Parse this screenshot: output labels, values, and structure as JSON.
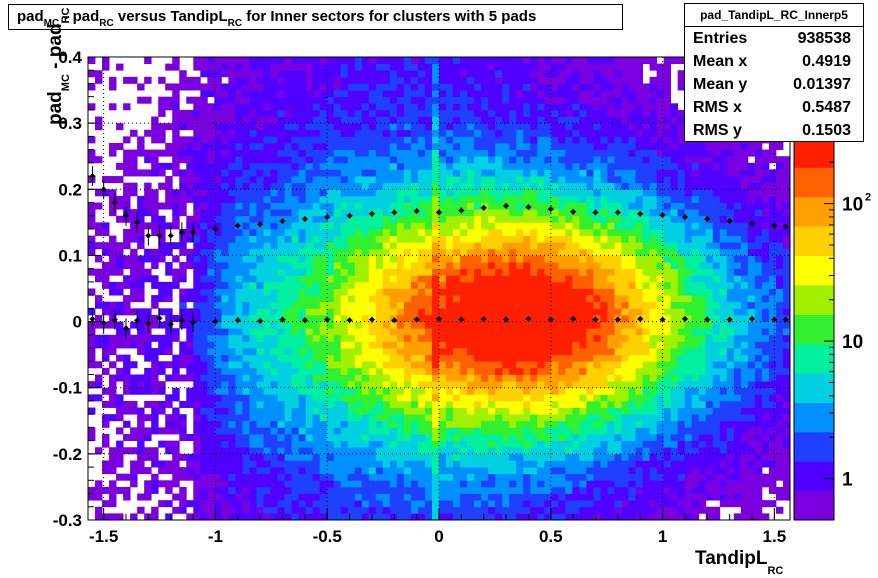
{
  "title": {
    "parts": [
      "pad",
      "MC",
      " - pad",
      "RC",
      " versus TandipL",
      "RC",
      " for Inner sectors for clusters with 5 pads"
    ]
  },
  "stats": {
    "name": "pad_TandipL_RC_Innerp5",
    "rows": [
      {
        "label": "Entries",
        "value": "938538"
      },
      {
        "label": "Mean x",
        "value": "0.4919"
      },
      {
        "label": "Mean y",
        "value": "0.01397"
      },
      {
        "label": "RMS x",
        "value": "0.5487"
      },
      {
        "label": "RMS y",
        "value": "0.1503"
      }
    ]
  },
  "chart_data": {
    "type": "heatmap",
    "xlabel": {
      "main": "TandipL",
      "sub": "RC"
    },
    "ylabel": {
      "parts": [
        "pad",
        "MC",
        " - pad",
        "RC"
      ]
    },
    "xlim": [
      -1.57,
      1.57
    ],
    "ylim": [
      -0.3,
      0.4
    ],
    "xticks": [
      "-1.5",
      "-1",
      "-0.5",
      "0",
      "0.5",
      "1",
      "1.5"
    ],
    "xtick_values": [
      -1.5,
      -1,
      -0.5,
      0,
      0.5,
      1,
      1.5
    ],
    "yticks": [
      "-0.3",
      "-0.2",
      "-0.1",
      "0",
      "0.1",
      "0.2",
      "0.3",
      "0.4"
    ],
    "ytick_values": [
      -0.3,
      -0.2,
      -0.1,
      0,
      0.1,
      0.2,
      0.3,
      0.4
    ],
    "z_scale": "log",
    "z_ticks": [
      {
        "label": "1",
        "value": 1
      },
      {
        "label": "10",
        "value": 10
      },
      {
        "label": "10",
        "exp": "2",
        "value": 100
      }
    ],
    "z_range": [
      0.5,
      300
    ],
    "grid": true,
    "colors": {
      "palette": [
        "#7a00e0",
        "#5000ff",
        "#2040ff",
        "#0090ff",
        "#00d0e0",
        "#00f0a0",
        "#30f030",
        "#a0f000",
        "#ffff00",
        "#ffd000",
        "#ffa000",
        "#ff6000",
        "#ff2000"
      ]
    },
    "profiles": [
      {
        "name": "mean",
        "x": [
          -1.55,
          -1.5,
          -1.45,
          -1.4,
          -1.35,
          -1.3,
          -1.25,
          -1.2,
          -1.15,
          -1.1,
          -1.0,
          -0.9,
          -0.8,
          -0.7,
          -0.6,
          -0.5,
          -0.4,
          -0.3,
          -0.2,
          -0.1,
          0.0,
          0.1,
          0.2,
          0.3,
          0.4,
          0.5,
          0.6,
          0.7,
          0.8,
          0.9,
          1.0,
          1.1,
          1.2,
          1.3,
          1.4,
          1.5,
          1.55
        ],
        "y": [
          0.004,
          -0.002,
          0.003,
          -0.01,
          0.002,
          -0.003,
          0.005,
          -0.004,
          0.002,
          -0.001,
          0.0,
          0.002,
          0.001,
          0.003,
          0.002,
          0.003,
          0.002,
          0.003,
          0.002,
          0.003,
          0.004,
          0.003,
          0.004,
          0.003,
          0.004,
          0.003,
          0.004,
          0.003,
          0.003,
          0.004,
          0.003,
          0.004,
          0.003,
          0.003,
          0.004,
          0.003,
          0.003
        ]
      },
      {
        "name": "rms",
        "x": [
          -1.55,
          -1.5,
          -1.45,
          -1.4,
          -1.35,
          -1.3,
          -1.25,
          -1.2,
          -1.15,
          -1.1,
          -1.0,
          -0.9,
          -0.8,
          -0.7,
          -0.6,
          -0.5,
          -0.4,
          -0.3,
          -0.2,
          -0.1,
          0.0,
          0.1,
          0.2,
          0.3,
          0.4,
          0.5,
          0.6,
          0.7,
          0.8,
          0.9,
          1.0,
          1.1,
          1.2,
          1.3,
          1.4,
          1.5,
          1.55
        ],
        "y": [
          0.22,
          0.2,
          0.18,
          0.16,
          0.15,
          0.13,
          0.13,
          0.13,
          0.135,
          0.135,
          0.14,
          0.145,
          0.147,
          0.152,
          0.155,
          0.158,
          0.16,
          0.163,
          0.165,
          0.167,
          0.165,
          0.168,
          0.172,
          0.175,
          0.173,
          0.17,
          0.166,
          0.165,
          0.165,
          0.163,
          0.161,
          0.158,
          0.155,
          0.152,
          0.148,
          0.145,
          0.143
        ]
      }
    ]
  }
}
